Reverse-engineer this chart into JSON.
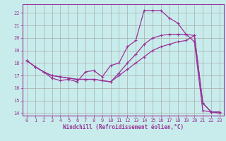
{
  "title": "",
  "xlabel": "Windchill (Refroidissement éolien,°C)",
  "bg_color": "#c8ecec",
  "grid_color": "#aaaaaa",
  "line_color": "#993399",
  "xlim": [
    -0.5,
    23.5
  ],
  "ylim": [
    13.8,
    22.7
  ],
  "yticks": [
    14,
    15,
    16,
    17,
    18,
    19,
    20,
    21,
    22
  ],
  "xticks": [
    0,
    1,
    2,
    3,
    4,
    5,
    6,
    7,
    8,
    9,
    10,
    11,
    12,
    13,
    14,
    15,
    16,
    17,
    18,
    19,
    20,
    21,
    22,
    23
  ],
  "curve1_x": [
    0,
    1,
    2,
    3,
    4,
    5,
    6,
    7,
    8,
    9,
    10,
    11,
    12,
    13,
    14,
    15,
    16,
    17,
    18,
    19,
    20,
    21,
    22,
    23
  ],
  "curve1_y": [
    18.2,
    17.7,
    17.3,
    16.8,
    16.6,
    16.7,
    16.5,
    17.3,
    17.4,
    16.9,
    17.8,
    18.0,
    19.3,
    19.8,
    22.2,
    22.2,
    22.2,
    21.6,
    21.2,
    20.3,
    19.7,
    14.2,
    14.1,
    14.1
  ],
  "curve2_x": [
    0,
    1,
    2,
    3,
    4,
    5,
    6,
    7,
    8,
    9,
    10,
    11,
    12,
    13,
    14,
    15,
    16,
    17,
    18,
    19,
    20,
    21,
    22,
    23
  ],
  "curve2_y": [
    18.2,
    17.7,
    17.3,
    17.0,
    16.9,
    16.8,
    16.7,
    16.7,
    16.7,
    16.6,
    16.5,
    17.0,
    17.5,
    18.0,
    18.5,
    19.0,
    19.3,
    19.5,
    19.7,
    19.8,
    20.2,
    14.8,
    14.1,
    14.0
  ],
  "curve3_x": [
    0,
    1,
    2,
    3,
    4,
    5,
    6,
    7,
    8,
    9,
    10,
    11,
    12,
    13,
    14,
    15,
    16,
    17,
    18,
    19,
    20,
    21,
    22,
    23
  ],
  "curve3_y": [
    18.2,
    17.7,
    17.3,
    17.0,
    16.9,
    16.8,
    16.7,
    16.7,
    16.7,
    16.6,
    16.5,
    17.2,
    18.0,
    18.7,
    19.5,
    20.0,
    20.2,
    20.3,
    20.3,
    20.3,
    20.2,
    14.8,
    14.1,
    14.0
  ],
  "xlabel_fontsize": 5.5,
  "tick_fontsize": 5.0,
  "lw": 0.9,
  "marker_size": 2.5
}
